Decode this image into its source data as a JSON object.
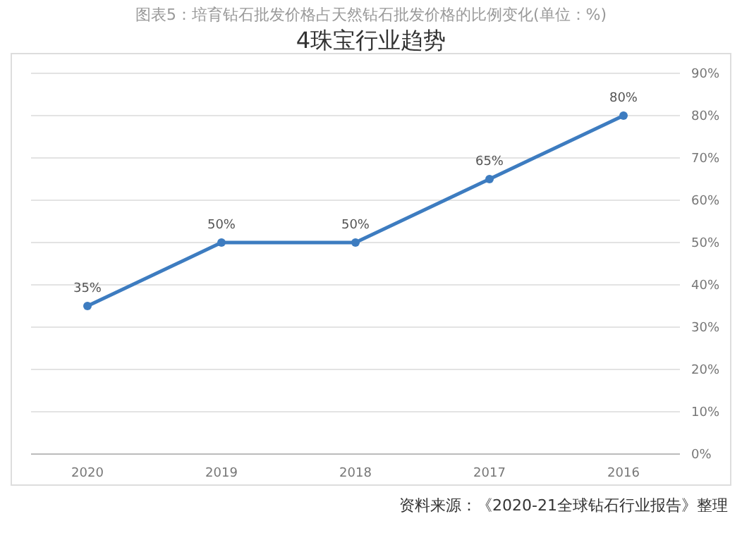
{
  "chart_data": {
    "type": "line",
    "title": "4珠宝行业趋势",
    "subtitle": "图表5：培育钻石批发价格占天然钻石批发价格的比例变化(单位：%)",
    "annotations": [
      "资料来源：《2020-21全球钻石行业报告》整理"
    ],
    "categories": [
      "2020",
      "2019",
      "2018",
      "2017",
      "2016"
    ],
    "series": [
      {
        "color": "#3d7cc0",
        "values": [
          35,
          50,
          50,
          65,
          80
        ],
        "value_labels": [
          "35%",
          "50%",
          "50%",
          "65%",
          "80%"
        ]
      }
    ],
    "ylim": [
      0,
      90
    ],
    "yticks": [
      {
        "value": 0,
        "label": "0%"
      },
      {
        "value": 10,
        "label": "10%"
      },
      {
        "value": 20,
        "label": "20%"
      },
      {
        "value": 30,
        "label": "30%"
      },
      {
        "value": 40,
        "label": "40%"
      },
      {
        "value": 50,
        "label": "50%"
      },
      {
        "value": 60,
        "label": "60%"
      },
      {
        "value": 70,
        "label": "70%"
      },
      {
        "value": 80,
        "label": "80%"
      },
      {
        "value": 90,
        "label": "90%"
      }
    ],
    "grid": "y",
    "marker": "circle",
    "line_style": "solid"
  }
}
